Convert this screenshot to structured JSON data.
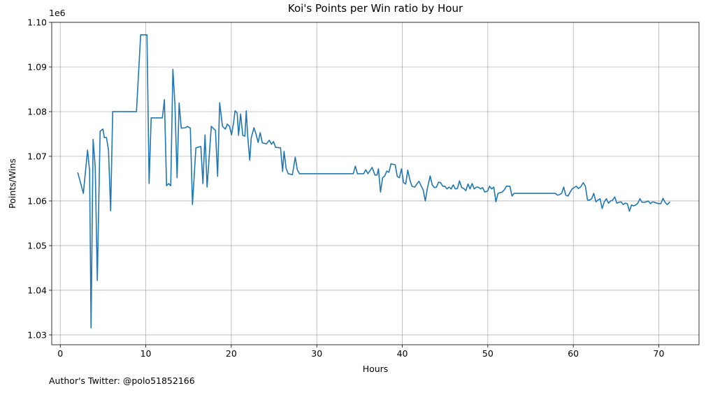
{
  "chart_data": {
    "type": "line",
    "title": "Koi's Points per Win ratio by Hour",
    "xlabel": "Hours",
    "ylabel": "Points/Wins",
    "y_offset_label": "1e6",
    "footnote": "Author's Twitter: @polo51852166",
    "color": "#1f77b4",
    "grid": true,
    "xlim": [
      -1,
      74.7
    ],
    "ylim": [
      1.0278,
      1.1
    ],
    "xticks": [
      0,
      10,
      20,
      30,
      40,
      50,
      60,
      70
    ],
    "yticks": [
      1.03,
      1.04,
      1.05,
      1.06,
      1.07,
      1.08,
      1.09,
      {
        "value": 1.1,
        "label": "1.10"
      }
    ],
    "x": [
      2.04,
      2.7,
      3.19,
      3.43,
      3.6,
      3.84,
      4.09,
      4.33,
      4.66,
      4.99,
      5.15,
      5.4,
      5.64,
      5.89,
      6.13,
      8.91,
      9.4,
      10.14,
      10.39,
      10.63,
      11.94,
      12.18,
      12.43,
      12.67,
      12.92,
      13.17,
      13.41,
      13.66,
      13.9,
      14.15,
      14.64,
      14.88,
      15.21,
      15.46,
      15.86,
      16.44,
      16.68,
      16.93,
      17.17,
      17.66,
      18.15,
      18.4,
      18.64,
      18.97,
      19.3,
      19.54,
      19.79,
      20.03,
      20.28,
      20.44,
      20.69,
      20.85,
      21.09,
      21.34,
      21.59,
      21.75,
      21.92,
      22.16,
      22.33,
      22.65,
      22.89,
      23.14,
      23.38,
      23.63,
      24.12,
      24.45,
      24.69,
      24.94,
      25.18,
      25.76,
      26.0,
      26.17,
      26.41,
      26.66,
      27.15,
      27.48,
      27.72,
      27.97,
      34.26,
      34.51,
      34.75,
      35.49,
      35.73,
      35.98,
      36.47,
      36.8,
      37.04,
      37.21,
      37.45,
      37.7,
      37.94,
      38.19,
      38.43,
      38.68,
      39.17,
      39.41,
      39.66,
      39.9,
      40.15,
      40.4,
      40.64,
      40.89,
      41.13,
      41.46,
      41.7,
      41.95,
      42.2,
      42.44,
      42.69,
      42.93,
      43.26,
      43.5,
      43.75,
      43.99,
      44.24,
      44.48,
      44.73,
      44.98,
      45.22,
      45.47,
      45.71,
      45.96,
      46.2,
      46.45,
      46.69,
      46.94,
      47.18,
      47.43,
      47.68,
      47.92,
      48.17,
      48.41,
      48.66,
      48.9,
      49.15,
      49.39,
      49.64,
      49.96,
      50.21,
      50.45,
      50.7,
      50.95,
      51.19,
      51.68,
      51.93,
      52.17,
      52.58,
      52.83,
      53.07,
      53.48,
      57.89,
      58.14,
      58.38,
      58.63,
      58.88,
      59.12,
      59.37,
      59.61,
      59.86,
      60.1,
      60.35,
      60.59,
      60.84,
      61.17,
      61.41,
      61.66,
      61.9,
      62.15,
      62.39,
      62.64,
      62.88,
      63.13,
      63.37,
      63.62,
      63.86,
      64.11,
      64.36,
      64.6,
      64.85,
      65.09,
      65.34,
      65.58,
      65.83,
      66.07,
      66.32,
      66.56,
      66.81,
      67.05,
      67.3,
      67.54,
      67.79,
      68.04,
      68.28,
      68.53,
      68.77,
      69.02,
      69.26,
      69.51,
      69.75,
      70.0,
      70.24,
      70.49,
      70.73,
      70.98,
      71.31
    ],
    "values": [
      1.0664,
      1.0617,
      1.0714,
      1.0667,
      1.0316,
      1.0738,
      1.0675,
      1.0422,
      1.0756,
      1.0761,
      1.0742,
      1.0742,
      1.0714,
      1.0578,
      1.08,
      1.08,
      1.0972,
      1.0972,
      1.0639,
      1.0786,
      1.0786,
      1.0827,
      1.0634,
      1.0639,
      1.0634,
      1.0895,
      1.0816,
      1.0652,
      1.0819,
      1.0763,
      1.0764,
      1.0767,
      1.0763,
      1.0592,
      1.0719,
      1.0722,
      1.0639,
      1.0748,
      1.0631,
      1.0767,
      1.0758,
      1.0655,
      1.082,
      1.0767,
      1.0761,
      1.0772,
      1.0767,
      1.0748,
      1.0777,
      1.0802,
      1.0797,
      1.0747,
      1.0795,
      1.0747,
      1.0745,
      1.0802,
      1.0744,
      1.0691,
      1.0741,
      1.0764,
      1.075,
      1.0731,
      1.0753,
      1.073,
      1.0728,
      1.0736,
      1.0727,
      1.0733,
      1.072,
      1.0719,
      1.0666,
      1.0711,
      1.0673,
      1.0661,
      1.0659,
      1.0698,
      1.067,
      1.0661,
      1.0661,
      1.0678,
      1.0661,
      1.0661,
      1.067,
      1.0661,
      1.0675,
      1.0658,
      1.0658,
      1.0672,
      1.062,
      1.0652,
      1.0656,
      1.0667,
      1.0664,
      1.0683,
      1.0681,
      1.0655,
      1.0652,
      1.0672,
      1.0641,
      1.0638,
      1.0669,
      1.0647,
      1.0633,
      1.0631,
      1.0638,
      1.0644,
      1.0634,
      1.0625,
      1.06,
      1.0628,
      1.0656,
      1.0636,
      1.063,
      1.0631,
      1.0642,
      1.0641,
      1.0633,
      1.0633,
      1.0627,
      1.0631,
      1.0627,
      1.0636,
      1.0627,
      1.0628,
      1.0645,
      1.063,
      1.0628,
      1.0623,
      1.0638,
      1.0627,
      1.0639,
      1.0627,
      1.0631,
      1.0631,
      1.0627,
      1.063,
      1.062,
      1.0622,
      1.0633,
      1.0627,
      1.0631,
      1.0598,
      1.0617,
      1.062,
      1.0625,
      1.0633,
      1.0633,
      1.0611,
      1.0617,
      1.0617,
      1.0617,
      1.0613,
      1.0614,
      1.0617,
      1.0631,
      1.0613,
      1.0611,
      1.0619,
      1.0627,
      1.063,
      1.0633,
      1.0628,
      1.0631,
      1.0641,
      1.0633,
      1.0602,
      1.0602,
      1.0605,
      1.0617,
      1.0598,
      1.0602,
      1.0605,
      1.0583,
      1.0598,
      1.0605,
      1.0595,
      1.06,
      1.0602,
      1.0609,
      1.0595,
      1.0597,
      1.0598,
      1.0592,
      1.0595,
      1.0594,
      1.0577,
      1.0591,
      1.0589,
      1.0591,
      1.0595,
      1.0605,
      1.0597,
      1.0597,
      1.0598,
      1.06,
      1.0594,
      1.0598,
      1.0597,
      1.0595,
      1.0594,
      1.0594,
      1.0606,
      1.0597,
      1.0592,
      1.0598
    ]
  }
}
